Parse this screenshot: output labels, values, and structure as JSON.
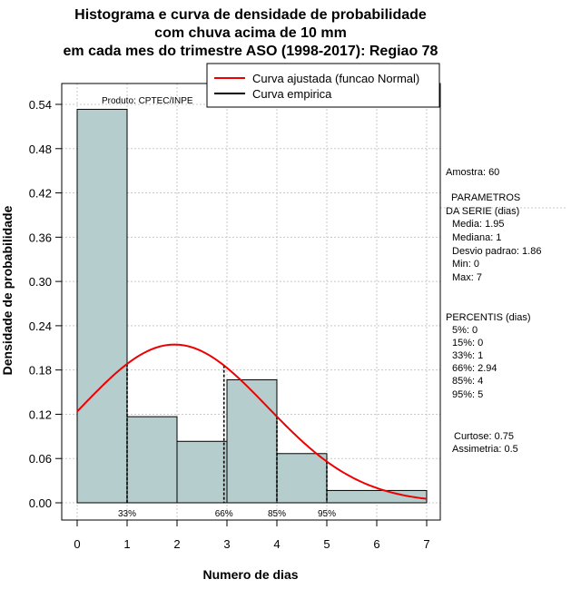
{
  "chart_data": {
    "type": "bar",
    "title_lines": [
      "Histograma e curva de densidade de probabilidade",
      "com chuva acima de 10 mm",
      "em cada mes do trimestre ASO (1998-2017): Regiao 78"
    ],
    "xlabel": "Numero de dias",
    "ylabel": "Densidade de probabilidade",
    "xlim": [
      0,
      7
    ],
    "ylim": [
      0,
      0.54
    ],
    "x_ticks": [
      "0",
      "1",
      "2",
      "3",
      "4",
      "5",
      "6",
      "7"
    ],
    "y_ticks": [
      "0.00",
      "0.06",
      "0.12",
      "0.18",
      "0.24",
      "0.30",
      "0.36",
      "0.42",
      "0.48",
      "0.54"
    ],
    "bins": [
      {
        "from": 0,
        "to": 1,
        "density": 0.5333
      },
      {
        "from": 1,
        "to": 2,
        "density": 0.1167
      },
      {
        "from": 2,
        "to": 3,
        "density": 0.0833
      },
      {
        "from": 3,
        "to": 4,
        "density": 0.1667
      },
      {
        "from": 4,
        "to": 5,
        "density": 0.0667
      },
      {
        "from": 5,
        "to": 7,
        "density": 0.0167
      }
    ],
    "normal_fit": {
      "mean": 1.95,
      "sd": 1.86,
      "x_from": 0,
      "x_to": 7
    },
    "percentile_lines": [
      {
        "x": 1,
        "label": "33%"
      },
      {
        "x": 2.94,
        "label": "66%"
      },
      {
        "x": 4,
        "label": "85%"
      },
      {
        "x": 5,
        "label": "95%"
      }
    ],
    "legend": [
      {
        "label": "Curva ajustada (funcao Normal)",
        "color": "#ee0000"
      },
      {
        "label": "Curva empirica",
        "color": "#000000"
      }
    ],
    "product_label": "Produto: CPTEC/INPE",
    "bar_color": "#b5cdcd",
    "curve_color": "#ee0000"
  },
  "stats": {
    "amostra": "Amostra: 60",
    "parametros_lines": [
      " PARAMETROS",
      "DA SERIE (dias)"
    ],
    "parametros_values": [
      "Media: 1.95",
      "Mediana: 1",
      "Desvio padrao: 1.86",
      "Min: 0",
      "Max: 7"
    ],
    "percentis_title": "PERCENTIS (dias)",
    "percentis_values": [
      "5%: 0",
      "15%: 0",
      "33%: 1",
      "66%: 2.94",
      "85%: 4",
      "95%: 5"
    ],
    "curtose": "Curtose: 0.75",
    "assimetria": "Assimetria: 0.5"
  }
}
